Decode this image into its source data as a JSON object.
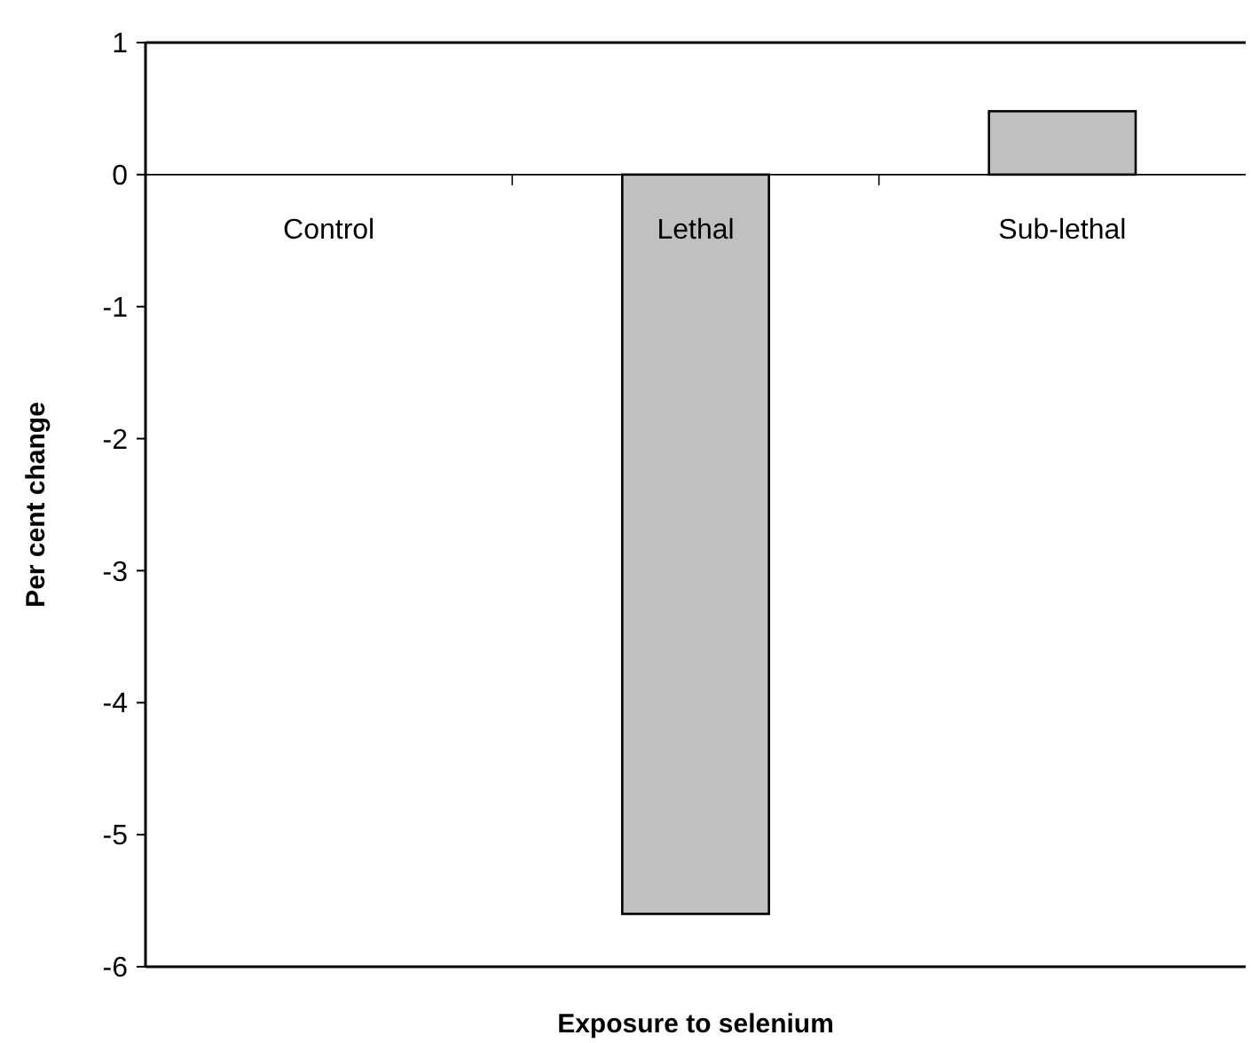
{
  "chart_data": {
    "type": "bar",
    "xlabel": "Exposure to selenium",
    "ylabel": "Per cent change",
    "categories": [
      "Control",
      "Lethal",
      "Sub-lethal"
    ],
    "values": [
      0,
      -5.6,
      0.48
    ],
    "color": "#c0c0c0",
    "ylim": [
      -6,
      1
    ],
    "yticks": [
      -6,
      -5,
      -4,
      -3,
      -2,
      -1,
      0,
      1
    ],
    "grid": false
  }
}
